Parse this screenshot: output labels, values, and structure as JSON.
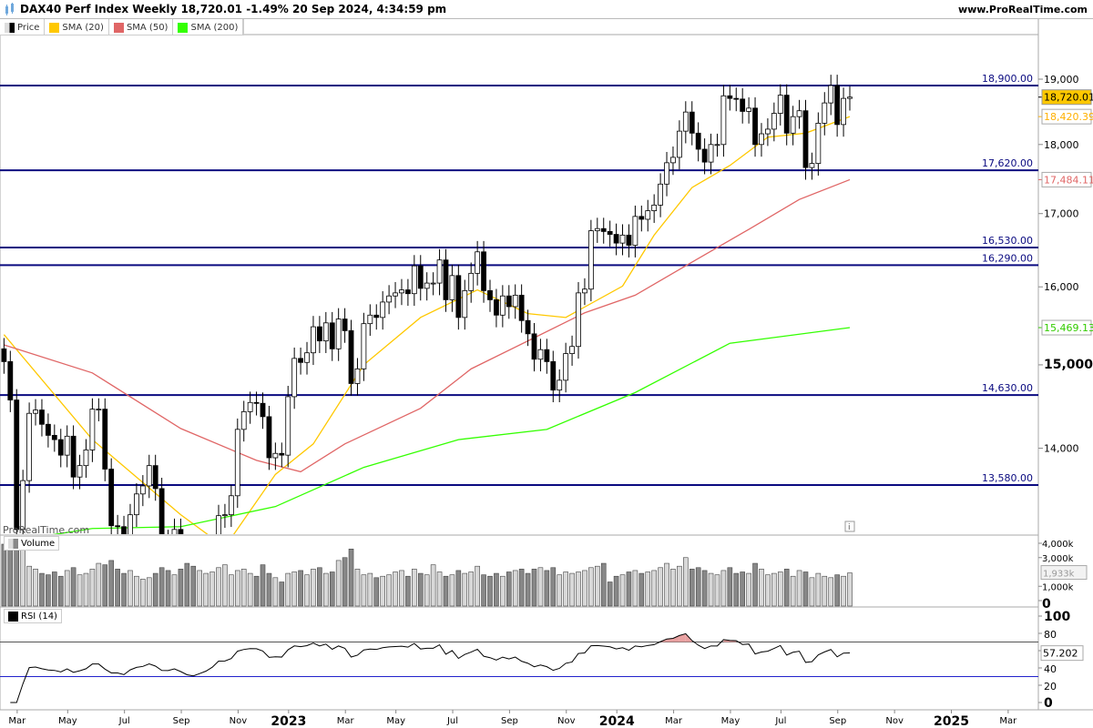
{
  "header": {
    "title": "DAX40 Perf Index Weekly 18,720.01 -1.49% 20 Sep 2024, 4:34:59 pm",
    "site": "www.ProRealTime.com",
    "watermark": "ProRealTime.com"
  },
  "legend": [
    {
      "label": "Price",
      "color": "#000000"
    },
    {
      "label": "SMA (20)",
      "color": "#ffc800"
    },
    {
      "label": "SMA (50)",
      "color": "#e06666"
    },
    {
      "label": "SMA (200)",
      "color": "#33ff00"
    }
  ],
  "panes": {
    "volume_label": "Volume",
    "rsi_label": "RSI (14)"
  },
  "chart_data": {
    "type": "candlestick",
    "title": "DAX40 Perf Index Weekly",
    "scale": "log",
    "ylim": [
      12900,
      19700
    ],
    "yticks": [
      {
        "v": 19000,
        "l": "19,000"
      },
      {
        "v": 18000,
        "l": "18,000"
      },
      {
        "v": 17000,
        "l": "17,000"
      },
      {
        "v": 16000,
        "l": "16,000"
      },
      {
        "v": 15000,
        "l": "15,000",
        "bold": true
      },
      {
        "v": 14000,
        "l": "14,000"
      }
    ],
    "hlines": [
      {
        "v": 18900,
        "l": "18,900.00"
      },
      {
        "v": 17620,
        "l": "17,620.00"
      },
      {
        "v": 16530,
        "l": "16,530.00"
      },
      {
        "v": 16290,
        "l": "16,290.00"
      },
      {
        "v": 14630,
        "l": "14,630.00"
      },
      {
        "v": 13580,
        "l": "13,580.00"
      }
    ],
    "tags": [
      {
        "v": 18720.01,
        "l": "18,720.01",
        "kind": "price"
      },
      {
        "v": 18420.39,
        "l": "18,420.39",
        "kind": "sma20"
      },
      {
        "v": 17484.11,
        "l": "17,484.11",
        "kind": "sma50"
      },
      {
        "v": 15469.13,
        "l": "15,469.13",
        "kind": "sma200"
      }
    ],
    "closes": [
      15040,
      14570,
      13090,
      13630,
      14410,
      14450,
      14280,
      14150,
      14100,
      13920,
      14140,
      13670,
      13800,
      13980,
      14460,
      14460,
      13760,
      13130,
      13120,
      12830,
      13250,
      13480,
      13570,
      13800,
      13540,
      12970,
      12960,
      13090,
      12740,
      12280,
      12110,
      12270,
      12440,
      12730,
      13240,
      13250,
      13460,
      14220,
      14430,
      14540,
      14530,
      14370,
      13890,
      13940,
      13920,
      14610,
      15080,
      15030,
      15150,
      15480,
      15300,
      15530,
      15200,
      15580,
      15430,
      14770,
      14950,
      15520,
      15630,
      15600,
      15800,
      15880,
      15920,
      15960,
      15910,
      16280,
      15980,
      16050,
      16050,
      16360,
      15830,
      16150,
      15600,
      15950,
      16180,
      16470,
      15950,
      15830,
      15630,
      15880,
      15740,
      15890,
      15560,
      15390,
      15070,
      15190,
      15040,
      14690,
      14810,
      15140,
      15230,
      15920,
      15970,
      16760,
      16790,
      16750,
      16710,
      16590,
      16700,
      16560,
      16960,
      16920,
      17040,
      17120,
      17420,
      17730,
      17810,
      18200,
      18490,
      18170,
      17930,
      17740,
      18000,
      18000,
      18740,
      18700,
      18690,
      18500,
      18550,
      18000,
      18160,
      18230,
      18470,
      18750,
      18170,
      18420,
      18510,
      17660,
      17720,
      18320,
      18630,
      18900,
      18300,
      18700,
      18720
    ],
    "sma": [
      {
        "name": "SMA (20)",
        "color": "#ffc800",
        "points": [
          [
            0,
            15380
          ],
          [
            14,
            14100
          ],
          [
            28,
            13250
          ],
          [
            35,
            12900
          ],
          [
            43,
            13700
          ],
          [
            49,
            14050
          ],
          [
            57,
            15000
          ],
          [
            66,
            15600
          ],
          [
            75,
            15960
          ],
          [
            83,
            15650
          ],
          [
            89,
            15600
          ],
          [
            98,
            16010
          ],
          [
            103,
            16700
          ],
          [
            109,
            17370
          ],
          [
            115,
            17690
          ],
          [
            121,
            18110
          ],
          [
            127,
            18170
          ],
          [
            134,
            18420.39
          ]
        ]
      },
      {
        "name": "SMA (50)",
        "color": "#e06666",
        "points": [
          [
            0,
            15250
          ],
          [
            14,
            14900
          ],
          [
            28,
            14230
          ],
          [
            40,
            13860
          ],
          [
            47,
            13730
          ],
          [
            54,
            14050
          ],
          [
            66,
            14470
          ],
          [
            74,
            14950
          ],
          [
            83,
            15300
          ],
          [
            92,
            15660
          ],
          [
            100,
            15890
          ],
          [
            109,
            16330
          ],
          [
            118,
            16780
          ],
          [
            126,
            17200
          ],
          [
            134,
            17484.11
          ]
        ]
      },
      {
        "name": "SMA (200)",
        "color": "#33ff00",
        "points": [
          [
            0,
            12950
          ],
          [
            14,
            13100
          ],
          [
            28,
            13120
          ],
          [
            43,
            13340
          ],
          [
            57,
            13780
          ],
          [
            72,
            14100
          ],
          [
            86,
            14220
          ],
          [
            100,
            14660
          ],
          [
            115,
            15270
          ],
          [
            134,
            15469.13
          ]
        ]
      }
    ],
    "xticks": [
      {
        "l": "Mar",
        "w": 2
      },
      {
        "l": "May",
        "w": 10
      },
      {
        "l": "Jul",
        "w": 19
      },
      {
        "l": "Sep",
        "w": 28
      },
      {
        "l": "Nov",
        "w": 37
      },
      {
        "l": "2023",
        "w": 45,
        "bold": true
      },
      {
        "l": "Mar",
        "w": 54
      },
      {
        "l": "May",
        "w": 62
      },
      {
        "l": "Jul",
        "w": 71
      },
      {
        "l": "Sep",
        "w": 80
      },
      {
        "l": "Nov",
        "w": 89
      },
      {
        "l": "2024",
        "w": 97,
        "bold": true
      },
      {
        "l": "Mar",
        "w": 106
      },
      {
        "l": "May",
        "w": 115
      },
      {
        "l": "Jul",
        "w": 123
      },
      {
        "l": "Sep",
        "w": 132
      },
      {
        "l": "Nov",
        "w": 141
      },
      {
        "l": "2025",
        "w": 150,
        "bold": true
      },
      {
        "l": "Mar",
        "w": 159
      }
    ],
    "volume": {
      "unit": "k",
      "ticks": [
        {
          "v": 4000,
          "l": "4,000k"
        },
        {
          "v": 3000,
          "l": "3,000k"
        },
        {
          "v": 1000,
          "l": "1,000k"
        },
        {
          "v": 0,
          "l": "0",
          "bold": true
        }
      ],
      "last_label": "1,933k",
      "values": [
        4200,
        3900,
        4600,
        3600,
        2400,
        2200,
        1900,
        1800,
        2000,
        1700,
        2100,
        2300,
        1800,
        1900,
        2200,
        2600,
        2500,
        2800,
        2200,
        1900,
        2100,
        1700,
        1500,
        1600,
        1900,
        2300,
        2100,
        1800,
        2200,
        2600,
        2400,
        2100,
        1900,
        2000,
        2300,
        2500,
        1800,
        2100,
        2200,
        1900,
        1700,
        2500,
        1900,
        1600,
        1300,
        1900,
        2000,
        2100,
        1800,
        2200,
        2300,
        1900,
        2000,
        2800,
        3000,
        3600,
        2200,
        1800,
        1900,
        1600,
        1700,
        1800,
        2000,
        2100,
        1700,
        2200,
        1900,
        1800,
        2500,
        2000,
        1700,
        1800,
        2100,
        1900,
        2000,
        2400,
        1800,
        1700,
        1900,
        1700,
        2000,
        2100,
        2200,
        1900,
        2200,
        2300,
        2100,
        2300,
        1800,
        2000,
        1900,
        2000,
        2100,
        2300,
        2400,
        2600,
        1300,
        1700,
        1800,
        2000,
        2100,
        1900,
        2000,
        2100,
        2300,
        2600,
        2200,
        2400,
        3000,
        2200,
        2300,
        2100,
        1900,
        1800,
        2100,
        2300,
        1900,
        2000,
        1900,
        2600,
        2200,
        1800,
        1900,
        2000,
        2200,
        1700,
        2100,
        2000,
        1600,
        1900,
        1700,
        1600,
        1800,
        1700,
        1933
      ]
    },
    "rsi": {
      "period": 14,
      "ticks": [
        {
          "v": 100,
          "l": "100",
          "bold": true
        },
        {
          "v": 80,
          "l": "80"
        },
        {
          "v": 60,
          "l": ""
        },
        {
          "v": 40,
          "l": "40"
        },
        {
          "v": 20,
          "l": "20"
        },
        {
          "v": 0,
          "l": "0",
          "bold": true
        }
      ],
      "levels": [
        70,
        30
      ],
      "last": 57.202,
      "last_label": "57.202"
    }
  }
}
